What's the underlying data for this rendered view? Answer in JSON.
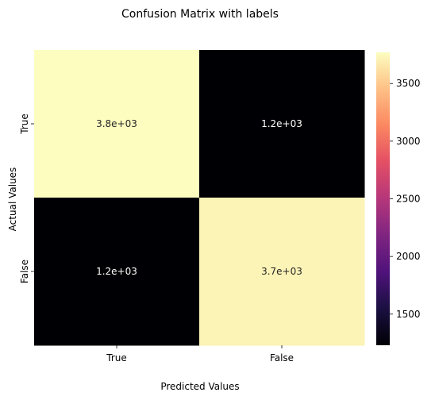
{
  "chart_data": {
    "type": "heatmap",
    "title": "Confusion Matrix with labels",
    "xlabel": "Predicted Values",
    "ylabel": "Actual Values",
    "x_categories": [
      "True",
      "False"
    ],
    "y_categories": [
      "True",
      "False"
    ],
    "values": [
      [
        3770,
        1230
      ],
      [
        1230,
        3720
      ]
    ],
    "annotations": [
      [
        "3.8e+03",
        "1.2e+03"
      ],
      [
        "1.2e+03",
        "3.7e+03"
      ]
    ],
    "colormap": "magma",
    "colorbar": {
      "range": [
        1230,
        3770
      ],
      "ticks": [
        1500,
        2000,
        2500,
        3000,
        3500
      ],
      "tick_labels": [
        "1500",
        "2000",
        "2500",
        "3000",
        "3500"
      ]
    },
    "colors": {
      "low": "#000004",
      "high": "#fcfdbf",
      "annotation_dark": "#262626",
      "annotation_light": "#ffffff"
    }
  }
}
